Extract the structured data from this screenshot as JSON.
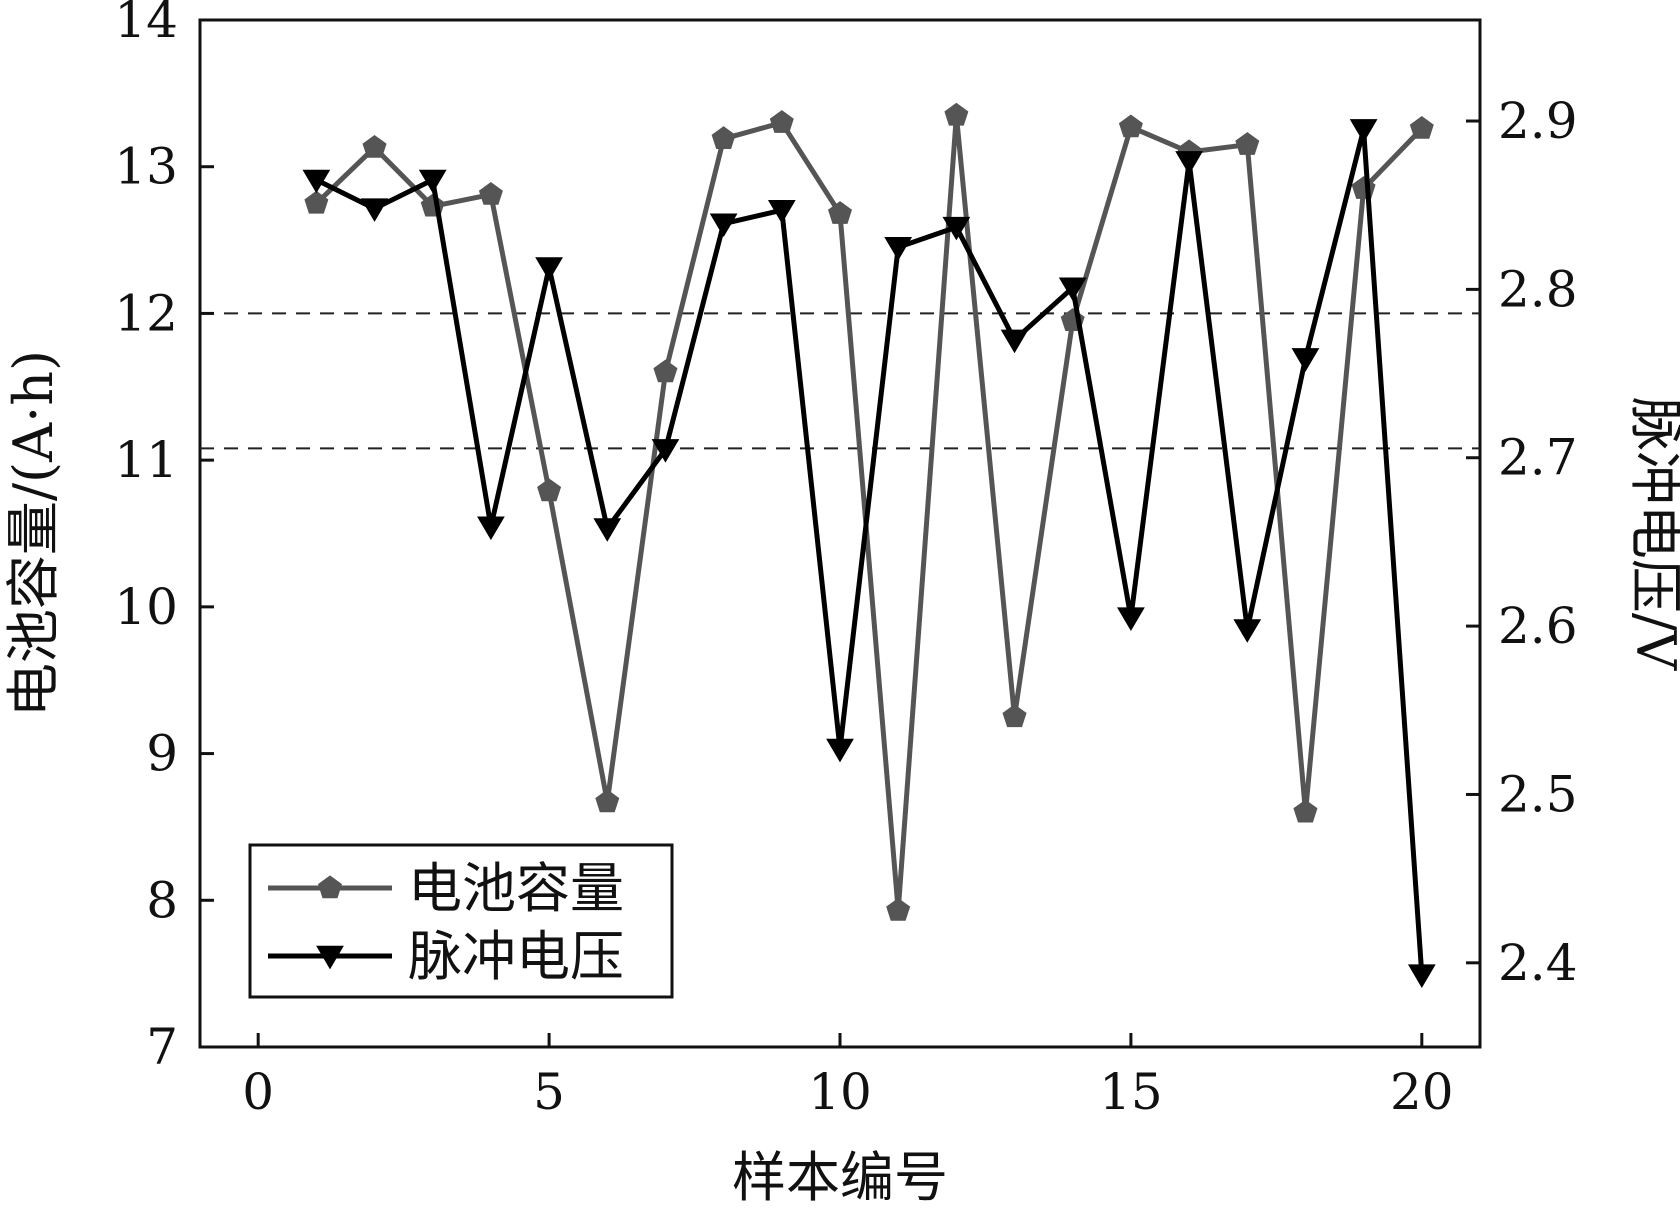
{
  "chart_data": {
    "type": "line",
    "xlabel": "样本编号",
    "ylabel_left": "电池容量/(A·h)",
    "ylabel_right": "脉冲电压/V",
    "xlim": [
      -1,
      21
    ],
    "xticks": [
      0,
      5,
      10,
      15,
      20
    ],
    "ylim_left": [
      7,
      14
    ],
    "yticks_left": [
      7,
      8,
      9,
      10,
      11,
      12,
      13,
      14
    ],
    "ylim_right": [
      2.35,
      2.96
    ],
    "yticks_right": [
      2.4,
      2.5,
      2.6,
      2.7,
      2.8,
      2.9
    ],
    "reference_lines_left": [
      12.0,
      11.08
    ],
    "legend_position": "bottom-left",
    "x": [
      1,
      2,
      3,
      4,
      5,
      6,
      7,
      8,
      9,
      10,
      11,
      12,
      13,
      14,
      15,
      16,
      17,
      18,
      19,
      20
    ],
    "series": [
      {
        "name": "电池容量",
        "axis": "left",
        "marker": "pentagon",
        "color": "#555555",
        "values": [
          12.75,
          13.13,
          12.73,
          12.81,
          10.79,
          8.67,
          11.6,
          13.19,
          13.3,
          12.68,
          7.93,
          13.35,
          9.25,
          11.95,
          13.27,
          13.1,
          13.15,
          8.6,
          12.85,
          13.26
        ]
      },
      {
        "name": "脉冲电压",
        "axis": "right",
        "marker": "triangle-down",
        "color": "#000000",
        "values": [
          2.865,
          2.848,
          2.865,
          2.659,
          2.813,
          2.658,
          2.705,
          2.839,
          2.847,
          2.527,
          2.825,
          2.837,
          2.77,
          2.801,
          2.605,
          2.876,
          2.598,
          2.759,
          2.895,
          2.393
        ]
      }
    ]
  }
}
